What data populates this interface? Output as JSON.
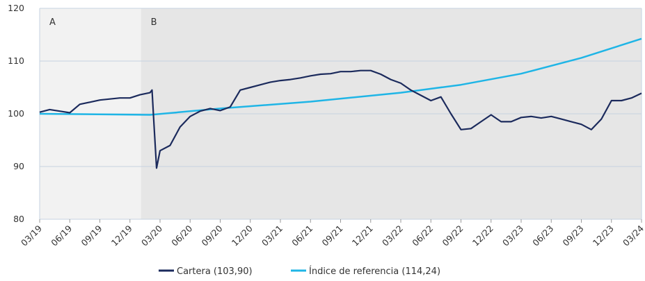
{
  "chart_data": {
    "type": "line",
    "xlim": [
      0,
      60
    ],
    "xticks": [
      {
        "value": 0,
        "label": "03/19"
      },
      {
        "value": 3,
        "label": "06/19"
      },
      {
        "value": 6,
        "label": "09/19"
      },
      {
        "value": 9,
        "label": "12/19"
      },
      {
        "value": 12,
        "label": "03/20"
      },
      {
        "value": 15,
        "label": "06/20"
      },
      {
        "value": 18,
        "label": "09/20"
      },
      {
        "value": 21,
        "label": "12/20"
      },
      {
        "value": 24,
        "label": "03/21"
      },
      {
        "value": 27,
        "label": "06/21"
      },
      {
        "value": 30,
        "label": "09/21"
      },
      {
        "value": 33,
        "label": "12/21"
      },
      {
        "value": 36,
        "label": "03/22"
      },
      {
        "value": 39,
        "label": "06/22"
      },
      {
        "value": 42,
        "label": "09/22"
      },
      {
        "value": 45,
        "label": "12/22"
      },
      {
        "value": 48,
        "label": "03/23"
      },
      {
        "value": 51,
        "label": "06/23"
      },
      {
        "value": 54,
        "label": "09/23"
      },
      {
        "value": 57,
        "label": "12/23"
      },
      {
        "value": 60,
        "label": "03/24"
      }
    ],
    "ylim": [
      80,
      120
    ],
    "yticks": [
      80,
      90,
      100,
      110,
      120
    ],
    "grid": true,
    "regions": [
      {
        "label": "A",
        "start": 0,
        "end": 10.1,
        "color": "#f2f2f2"
      },
      {
        "label": "B",
        "start": 10.1,
        "end": 60,
        "color": "#e6e6e6"
      }
    ],
    "series": [
      {
        "name": "Cartera (103,90)",
        "color": "#1b2a5c",
        "x": [
          0,
          1,
          2,
          3,
          4,
          5,
          6,
          7,
          8,
          9,
          10,
          11,
          11.2,
          11.4,
          11.65,
          12,
          13,
          14,
          15,
          16,
          17,
          18,
          19,
          20,
          21,
          22,
          23,
          24,
          25,
          26,
          27,
          28,
          29,
          30,
          31,
          32,
          33,
          34,
          35,
          36,
          37,
          38,
          39,
          40,
          41,
          42,
          43,
          44,
          45,
          46,
          47,
          48,
          49,
          50,
          51,
          52,
          53,
          54,
          55,
          56,
          57,
          58,
          59,
          60
        ],
        "values": [
          100.3,
          100.8,
          100.5,
          100.2,
          101.8,
          102.2,
          102.6,
          102.8,
          103.0,
          103.0,
          103.6,
          104.0,
          104.5,
          98,
          89.7,
          93,
          94,
          97.5,
          99.5,
          100.5,
          101,
          100.6,
          101.3,
          104.5,
          105,
          105.5,
          106,
          106.3,
          106.5,
          106.8,
          107.2,
          107.5,
          107.6,
          108,
          108,
          108.2,
          108.2,
          107.5,
          106.5,
          105.8,
          104.5,
          103.5,
          102.5,
          103.2,
          100,
          97,
          97.2,
          98.5,
          99.8,
          98.5,
          98.5,
          99.3,
          99.5,
          99.2,
          99.5,
          99,
          98.5,
          98,
          97,
          99,
          102.5,
          102.5,
          103,
          103.9
        ]
      },
      {
        "name": "Índice de referencia (114,24)",
        "color": "#1fb5e6",
        "x": [
          0,
          11,
          18,
          27,
          36,
          42,
          48,
          54,
          60
        ],
        "values": [
          100,
          99.8,
          101,
          102.3,
          104,
          105.5,
          107.6,
          110.6,
          114.24
        ]
      }
    ]
  }
}
